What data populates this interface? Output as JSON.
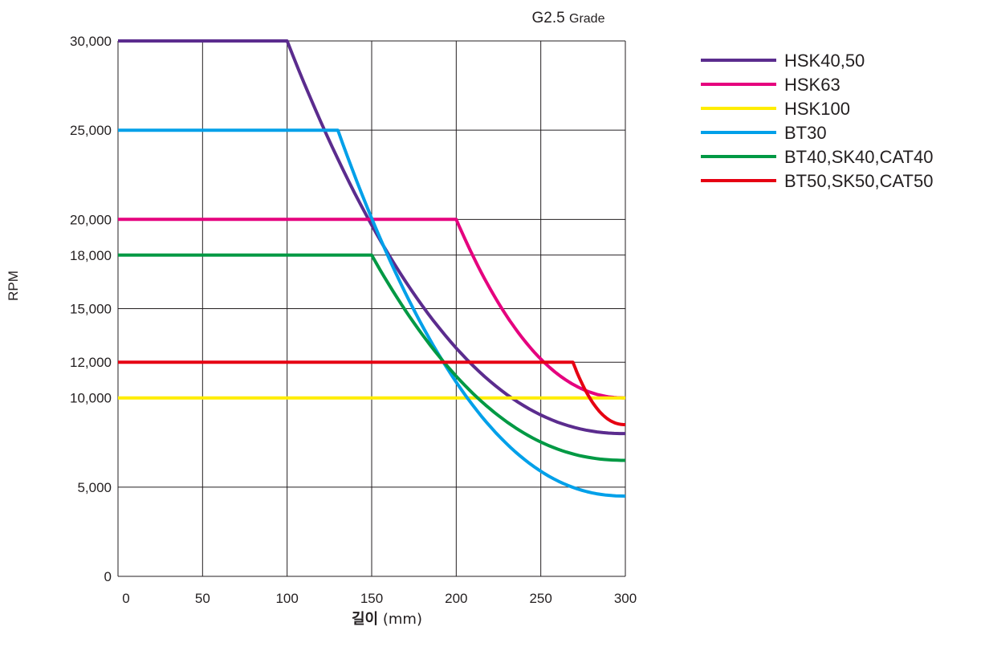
{
  "chart_data": {
    "type": "line",
    "title": "",
    "subtitle_main": "G2.5",
    "subtitle_small": "Grade",
    "ylabel": "RPM",
    "xlabel_main": "길이",
    "xlabel_unit": "(mm)",
    "xlim": [
      0,
      300
    ],
    "ylim": [
      0,
      30000
    ],
    "x_ticks": [
      0,
      50,
      100,
      150,
      200,
      250,
      300
    ],
    "x_tick_labels": [
      "0",
      "50",
      "100",
      "150",
      "200",
      "250",
      "300"
    ],
    "y_ticks": [
      0,
      5000,
      10000,
      12000,
      15000,
      18000,
      20000,
      25000,
      30000
    ],
    "y_tick_labels": [
      "0",
      "5,000",
      "10,000",
      "12,000",
      "15,000",
      "18,000",
      "20,000",
      "25,000",
      "30,000"
    ],
    "grid": true,
    "legend_position": "top-right",
    "series": [
      {
        "name": "HSK40,50",
        "color": "#5b2c8e",
        "plateau": 30000,
        "knee": 100,
        "end_value": 8000
      },
      {
        "name": "HSK63",
        "color": "#e5007e",
        "plateau": 20000,
        "knee": 200,
        "end_value": 10000
      },
      {
        "name": "HSK100",
        "color": "#ffed00",
        "plateau": 10000,
        "knee": 300,
        "end_value": 10000
      },
      {
        "name": "BT30",
        "color": "#00a0e9",
        "plateau": 25000,
        "knee": 130,
        "end_value": 4500
      },
      {
        "name": "BT40,SK40,CAT40",
        "color": "#009944",
        "plateau": 18000,
        "knee": 150,
        "end_value": 6500
      },
      {
        "name": "BT50,SK50,CAT50",
        "color": "#e60012",
        "plateau": 12000,
        "knee": 269,
        "end_value": 8500
      }
    ]
  }
}
